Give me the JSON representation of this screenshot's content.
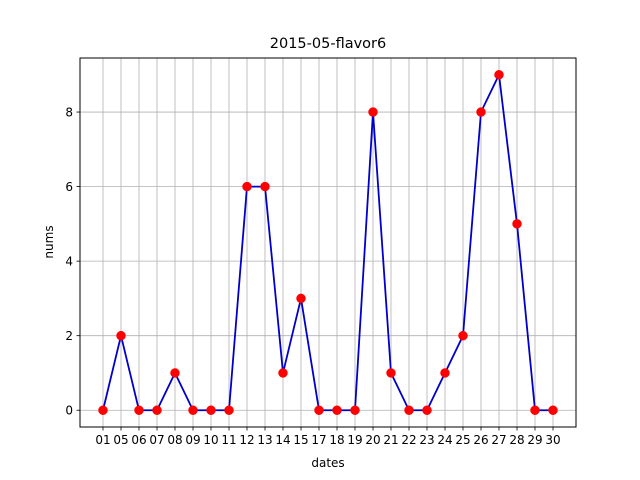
{
  "chart_data": {
    "type": "line",
    "title": "2015-05-flavor6",
    "xlabel": "dates",
    "ylabel": "nums",
    "categories": [
      "01",
      "05",
      "06",
      "07",
      "08",
      "09",
      "10",
      "11",
      "12",
      "13",
      "14",
      "15",
      "17",
      "18",
      "19",
      "20",
      "21",
      "22",
      "23",
      "24",
      "25",
      "26",
      "27",
      "28",
      "29",
      "30"
    ],
    "series": [
      {
        "values": [
          0,
          2,
          0,
          0,
          1,
          0,
          0,
          0,
          6,
          6,
          1,
          3,
          0,
          0,
          0,
          8,
          1,
          0,
          0,
          1,
          2,
          8,
          9,
          5,
          0,
          0
        ],
        "line_color": "#0000cc",
        "marker_color": "#ff0000"
      }
    ],
    "yticks": [
      0,
      2,
      4,
      6,
      8
    ],
    "ylim": [
      -0.45,
      9.45
    ],
    "grid": true
  }
}
